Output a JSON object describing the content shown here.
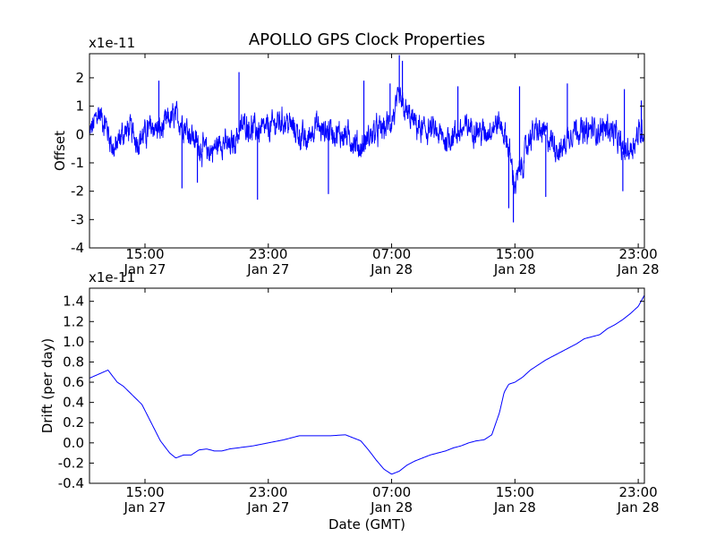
{
  "title": "APOLLO GPS Clock Properties",
  "xlabel": "Date (GMT)",
  "x_ticks": [
    {
      "hours": 15,
      "line1": "15:00",
      "line2": "Jan 27"
    },
    {
      "hours": 23,
      "line1": "23:00",
      "line2": "Jan 27"
    },
    {
      "hours": 31,
      "line1": "07:00",
      "line2": "Jan 28"
    },
    {
      "hours": 39,
      "line1": "15:00",
      "line2": "Jan 28"
    },
    {
      "hours": 47,
      "line1": "23:00",
      "line2": "Jan 28"
    }
  ],
  "colors": {
    "series": "#0000ff",
    "axes": "#000000",
    "background": "#ffffff"
  },
  "chart_data": [
    {
      "type": "line",
      "title": "APOLLO GPS Clock Properties",
      "ylabel": "Offset",
      "scale_label": "x1e-11",
      "xlim_hours": [
        11.4,
        47.4
      ],
      "ylim": [
        -4,
        2.85
      ],
      "y_ticks": [
        -4,
        -3,
        -2,
        -1,
        0,
        1,
        2
      ],
      "y_tick_labels": [
        "-4",
        "-3",
        "-2",
        "-1",
        "0",
        "1",
        "2"
      ],
      "noise": 0.35,
      "series": [
        {
          "name": "Offset",
          "x": [
            11.4,
            12.0,
            12.5,
            13.0,
            13.5,
            14.0,
            14.5,
            15.0,
            15.5,
            16.0,
            16.5,
            17.0,
            17.5,
            18.0,
            18.5,
            19.0,
            19.5,
            20.0,
            20.5,
            21.0,
            21.5,
            22.0,
            22.5,
            23.0,
            23.5,
            24.0,
            24.5,
            25.0,
            25.5,
            26.0,
            26.5,
            27.0,
            27.5,
            28.0,
            28.5,
            29.0,
            29.5,
            30.0,
            30.5,
            31.0,
            31.5,
            32.0,
            32.5,
            33.0,
            33.5,
            34.0,
            34.5,
            35.0,
            35.5,
            36.0,
            36.5,
            37.0,
            37.5,
            38.0,
            38.5,
            39.0,
            39.5,
            40.0,
            40.5,
            41.0,
            41.5,
            42.0,
            42.5,
            43.0,
            43.5,
            44.0,
            44.5,
            45.0,
            45.5,
            46.0,
            46.5,
            47.0,
            47.4
          ],
          "values": [
            0.0,
            0.8,
            0.3,
            -0.6,
            0.0,
            0.2,
            -0.2,
            0.0,
            0.3,
            0.1,
            0.5,
            0.6,
            0.4,
            0.0,
            -0.4,
            -0.6,
            -0.5,
            -0.2,
            -0.5,
            0.0,
            0.4,
            0.2,
            0.1,
            0.2,
            0.4,
            0.5,
            0.3,
            0.0,
            -0.3,
            0.4,
            0.1,
            0.2,
            0.0,
            0.0,
            -0.2,
            -0.5,
            -0.1,
            0.1,
            0.2,
            0.5,
            1.2,
            0.7,
            0.4,
            0.1,
            0.2,
            0.0,
            -0.2,
            0.0,
            0.1,
            0.3,
            0.2,
            0.0,
            0.3,
            0.4,
            -0.2,
            -1.8,
            -1.0,
            0.0,
            0.1,
            0.0,
            -0.3,
            -0.6,
            0.0,
            0.3,
            0.0,
            0.2,
            0.1,
            0.3,
            0.0,
            -0.6,
            -0.5,
            0.0,
            0.2
          ]
        }
      ],
      "spikes": [
        {
          "hours": 15.9,
          "value": 1.9
        },
        {
          "hours": 17.4,
          "value": -1.9
        },
        {
          "hours": 18.4,
          "value": -1.7
        },
        {
          "hours": 21.1,
          "value": 2.2
        },
        {
          "hours": 22.3,
          "value": -2.3
        },
        {
          "hours": 26.9,
          "value": -2.1
        },
        {
          "hours": 29.2,
          "value": 1.9
        },
        {
          "hours": 30.9,
          "value": 1.8
        },
        {
          "hours": 31.5,
          "value": 2.8
        },
        {
          "hours": 31.7,
          "value": 2.6
        },
        {
          "hours": 35.3,
          "value": 1.7
        },
        {
          "hours": 38.6,
          "value": -2.6
        },
        {
          "hours": 38.9,
          "value": -3.1
        },
        {
          "hours": 39.3,
          "value": 1.7
        },
        {
          "hours": 41.0,
          "value": -2.2
        },
        {
          "hours": 42.4,
          "value": 1.8
        },
        {
          "hours": 46.0,
          "value": -2.0
        },
        {
          "hours": 46.1,
          "value": 1.6
        },
        {
          "hours": 47.2,
          "value": 1.2
        }
      ]
    },
    {
      "type": "line",
      "ylabel": "Drift (per day)",
      "scale_label": "x1e-11",
      "xlim_hours": [
        11.4,
        47.4
      ],
      "ylim": [
        -0.4,
        1.53
      ],
      "y_ticks": [
        -0.4,
        -0.2,
        0.0,
        0.2,
        0.4,
        0.6,
        0.8,
        1.0,
        1.2,
        1.4
      ],
      "y_tick_labels": [
        "-0.4",
        "-0.2",
        "0.0",
        "0.2",
        "0.4",
        "0.6",
        "0.8",
        "1.0",
        "1.2",
        "1.4"
      ],
      "series": [
        {
          "name": "Drift",
          "x": [
            11.4,
            12.0,
            12.6,
            13.2,
            13.6,
            14.2,
            14.8,
            15.4,
            16.0,
            16.6,
            17.0,
            17.5,
            18.0,
            18.5,
            19.0,
            19.5,
            20.0,
            20.5,
            21.0,
            22.0,
            23.0,
            24.0,
            25.0,
            26.0,
            27.0,
            28.0,
            28.5,
            29.0,
            29.5,
            30.0,
            30.5,
            31.0,
            31.5,
            32.0,
            32.5,
            33.0,
            33.5,
            34.0,
            34.5,
            35.0,
            35.5,
            36.0,
            36.5,
            37.0,
            37.5,
            38.0,
            38.3,
            38.6,
            39.0,
            39.5,
            40.0,
            40.5,
            41.0,
            41.5,
            42.0,
            42.5,
            43.0,
            43.5,
            44.0,
            44.5,
            45.0,
            45.5,
            46.0,
            46.5,
            47.0,
            47.4
          ],
          "values": [
            0.64,
            0.68,
            0.72,
            0.6,
            0.56,
            0.47,
            0.38,
            0.2,
            0.02,
            -0.1,
            -0.15,
            -0.12,
            -0.12,
            -0.07,
            -0.06,
            -0.08,
            -0.08,
            -0.06,
            -0.05,
            -0.03,
            0.0,
            0.03,
            0.07,
            0.07,
            0.07,
            0.08,
            0.05,
            0.02,
            -0.07,
            -0.17,
            -0.26,
            -0.31,
            -0.28,
            -0.22,
            -0.18,
            -0.15,
            -0.12,
            -0.1,
            -0.08,
            -0.05,
            -0.03,
            0.0,
            0.02,
            0.03,
            0.08,
            0.3,
            0.5,
            0.58,
            0.6,
            0.65,
            0.72,
            0.77,
            0.82,
            0.86,
            0.9,
            0.94,
            0.98,
            1.03,
            1.05,
            1.07,
            1.13,
            1.17,
            1.22,
            1.28,
            1.35,
            1.46
          ]
        }
      ]
    }
  ]
}
